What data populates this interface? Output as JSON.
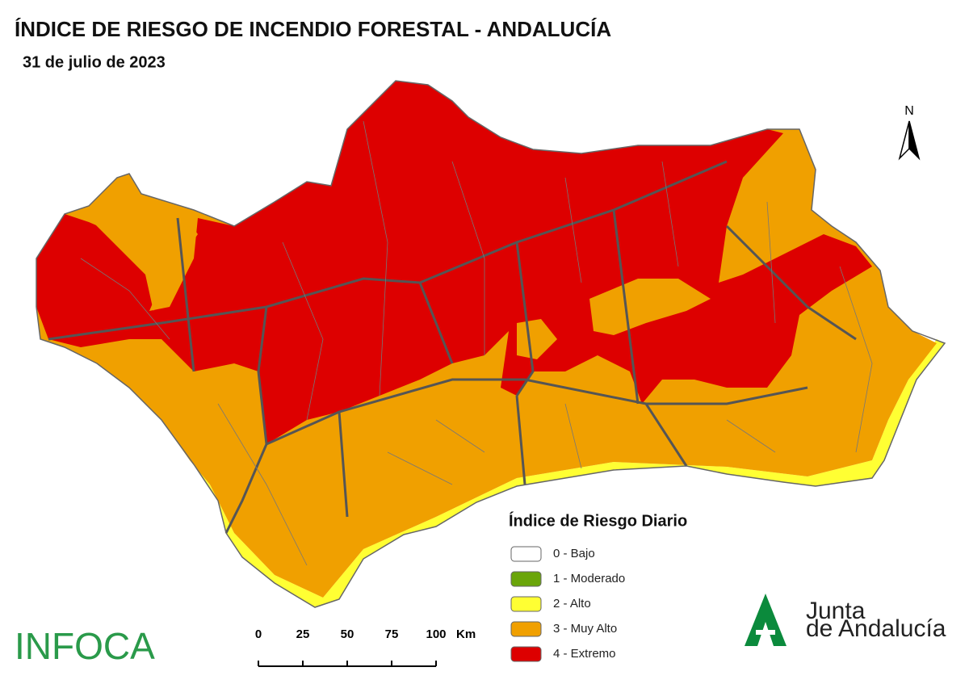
{
  "header": {
    "title": "ÍNDICE DE RIESGO DE INCENDIO FORESTAL - ANDALUCÍA",
    "date": "31 de julio de 2023"
  },
  "north_arrow": {
    "label": "N"
  },
  "legend": {
    "title": "Índice de Riesgo Diario",
    "items": [
      {
        "label": "0 - Bajo",
        "color": "#ffffff"
      },
      {
        "label": "1 - Moderado",
        "color": "#6aa50a"
      },
      {
        "label": "2 - Alto",
        "color": "#ffff33"
      },
      {
        "label": "3 - Muy Alto",
        "color": "#f0a000"
      },
      {
        "label": "4 - Extremo",
        "color": "#dd0000"
      }
    ]
  },
  "scale_bar": {
    "ticks": [
      0,
      25,
      50,
      75,
      100
    ],
    "unit": "Km"
  },
  "logos": {
    "infoca": "INFOCA",
    "junta_line1": "Junta",
    "junta_line2": "de Andalucía"
  }
}
